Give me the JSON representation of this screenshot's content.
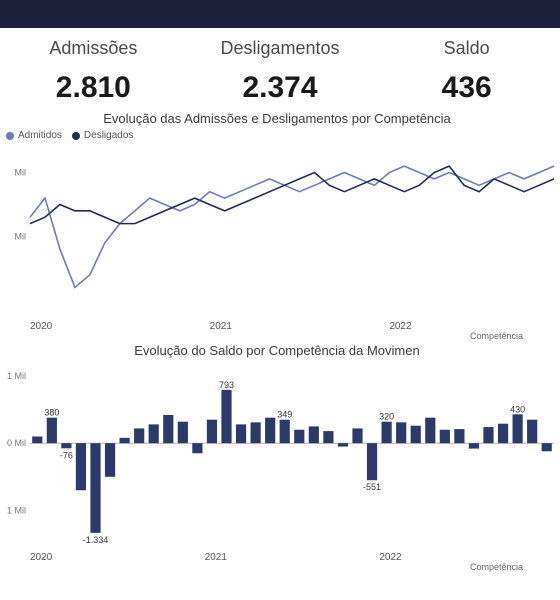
{
  "top_bar": {
    "color": "#1a1f3a"
  },
  "kpis": {
    "admissoes": {
      "label": "Admissões",
      "value": "2.810"
    },
    "desligamentos": {
      "label": "Desligamentos",
      "value": "2.374"
    },
    "saldo": {
      "label": "Saldo",
      "value": "436"
    }
  },
  "line_chart": {
    "type": "line",
    "title": "Evolução das Admissões e Desligamentos por Competência",
    "legend": [
      {
        "label": "Admitidos",
        "color": "#6b7db8"
      },
      {
        "label": "Desligados",
        "color": "#1f2b5b"
      }
    ],
    "x_labels": [
      "2020",
      "2021",
      "2022"
    ],
    "x_axis_title": "Competência",
    "y_ticks": [
      "Mil",
      "Mil"
    ],
    "admitidos_values": [
      2.3,
      2.6,
      1.8,
      1.2,
      1.4,
      1.9,
      2.2,
      2.4,
      2.6,
      2.5,
      2.4,
      2.5,
      2.7,
      2.6,
      2.7,
      2.8,
      2.9,
      2.8,
      2.7,
      2.8,
      2.9,
      3.0,
      2.9,
      2.8,
      3.0,
      3.1,
      3.0,
      2.9,
      3.0,
      2.9,
      2.8,
      2.9,
      3.0,
      2.9,
      3.0,
      3.1
    ],
    "desligados_values": [
      2.2,
      2.3,
      2.5,
      2.4,
      2.4,
      2.3,
      2.2,
      2.2,
      2.3,
      2.4,
      2.5,
      2.6,
      2.5,
      2.4,
      2.5,
      2.6,
      2.7,
      2.8,
      2.9,
      3.0,
      2.8,
      2.7,
      2.8,
      2.9,
      2.8,
      2.7,
      2.8,
      3.0,
      3.1,
      2.8,
      2.7,
      2.9,
      2.8,
      2.7,
      2.8,
      2.9
    ],
    "y_min": 0.8,
    "y_max": 3.4,
    "admitidos_color": "#6b7db8",
    "desligados_color": "#1f2b5b",
    "grid_color": "#e8e8e8",
    "background": "#ffffff",
    "line_width": 1.6
  },
  "bar_chart": {
    "type": "bar",
    "title": "Evolução do Saldo por Competência da Movimen",
    "x_labels": [
      "2020",
      "2021",
      "2022"
    ],
    "x_axis_title": "Competência",
    "y_ticks": [
      "1 Mil",
      "0 Mil",
      "1 Mil"
    ],
    "values": [
      100,
      380,
      -76,
      -700,
      -1334,
      -500,
      80,
      220,
      280,
      420,
      320,
      -150,
      350,
      793,
      280,
      310,
      380,
      349,
      200,
      250,
      180,
      -50,
      220,
      -551,
      320,
      310,
      260,
      380,
      200,
      210,
      -80,
      240,
      290,
      430,
      350,
      -120
    ],
    "annotated": {
      "1": "380",
      "2": "-76",
      "4": "-1.334",
      "13": "793",
      "17": "349",
      "23": "-551",
      "24": "320",
      "33": "430"
    },
    "y_min": -1500,
    "y_max": 1000,
    "bar_color": "#2b3a6b",
    "zero_line_color": "#b0b0b0",
    "background": "#ffffff"
  }
}
